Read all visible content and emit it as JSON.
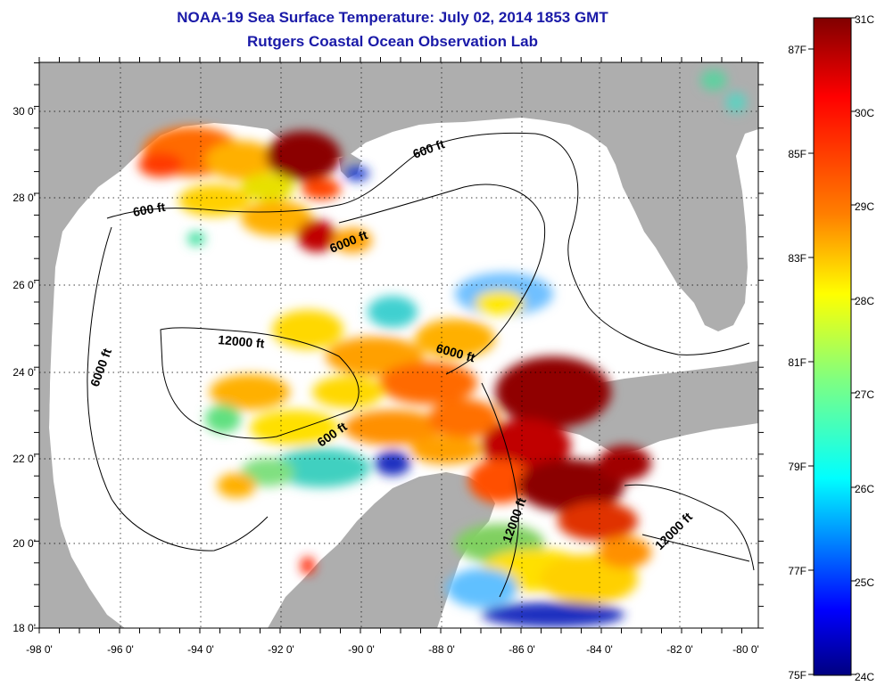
{
  "header": {
    "title": "NOAA-19 Sea Surface Temperature:  July 02, 2014 1853 GMT",
    "subtitle": "Rutgers Coastal Ocean Observation Lab"
  },
  "map": {
    "lat_labels": [
      "30 0'",
      "28 0'",
      "26 0'",
      "24 0'",
      "22 0'",
      "20 0'",
      "18 0'"
    ],
    "lon_labels": [
      "-98 0'",
      "-96 0'",
      "-94 0'",
      "-92 0'",
      "-90 0'",
      "-88 0'",
      "-86 0'",
      "-84 0'",
      "-82 0'",
      "-80 0'"
    ],
    "contour_labels": [
      "600 ft",
      "600 ft",
      "600 ft",
      "6000 ft",
      "6000 ft",
      "6000 ft",
      "12000 ft",
      "12000 ft",
      "12000 ft"
    ],
    "colors": {
      "land": "#aeaeae",
      "no_data": "#ffffff"
    }
  },
  "colorbar": {
    "celsius_labels": [
      "31C",
      "30C",
      "29C",
      "28C",
      "27C",
      "26C",
      "25C",
      "24C"
    ],
    "fahrenheit_labels": [
      "87F",
      "85F",
      "83F",
      "81F",
      "79F",
      "77F",
      "75F"
    ],
    "colors": [
      "#800000",
      "#ff0000",
      "#ff8000",
      "#ffff00",
      "#80ff80",
      "#00ffff",
      "#0080ff",
      "#0000ff",
      "#000080"
    ]
  }
}
